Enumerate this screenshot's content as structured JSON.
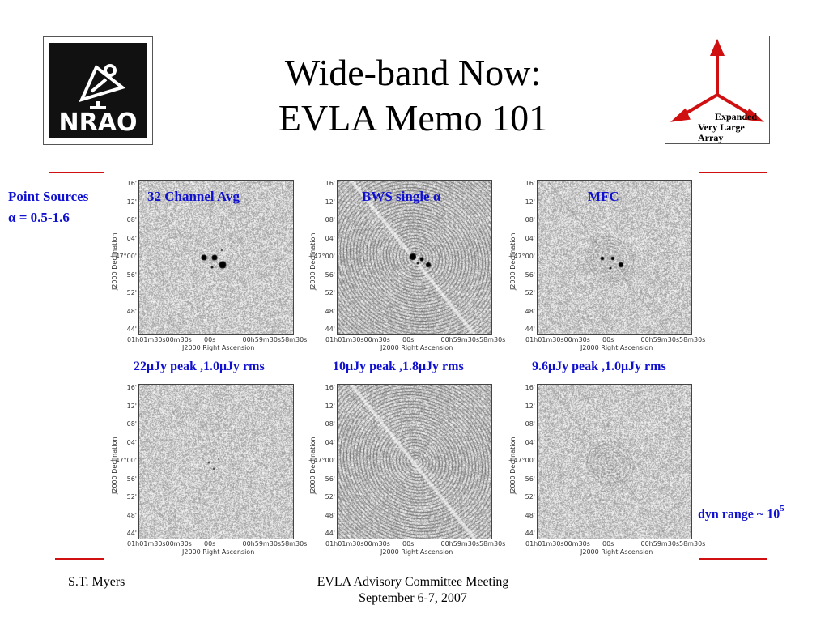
{
  "slide": {
    "title_line1": "Wide-band Now:",
    "title_line2": "EVLA Memo 101"
  },
  "logos": {
    "nrao_text": "NRAO",
    "evla_line1": "Expanded",
    "evla_line2": "Very Large Array"
  },
  "labels": {
    "point_sources": "Point Sources",
    "alpha_range": "α = 0.5-1.6",
    "col1_header": "32 Channel Avg",
    "col2_header": "BWS single α",
    "col3_header": "MFC",
    "col1_stats": "22μJy peak ,1.0μJy rms",
    "col2_stats": "10μJy peak ,1.8μJy rms",
    "col3_stats": "9.6μJy peak ,1.0μJy rms",
    "dyn_range": "dyn range ~ 10",
    "dyn_exp": "5"
  },
  "axes": {
    "y_ticks": [
      "16'",
      "12'",
      "08'",
      "04'",
      "+47°00'",
      "56'",
      "52'",
      "48'",
      "44'"
    ],
    "x_ticks": [
      "01h01m30s",
      "00m30s",
      "00s",
      "00h59m30s",
      "58m30s"
    ],
    "x_label": "J2000 Right Ascension",
    "y_label": "J2000 Declination"
  },
  "footer": {
    "author": "S.T. Myers",
    "meeting_line1": "EVLA Advisory Committee Meeting",
    "meeting_line2": "September 6-7, 2007"
  },
  "colors": {
    "accent_red": "#d01010",
    "label_blue": "#1010d0"
  }
}
